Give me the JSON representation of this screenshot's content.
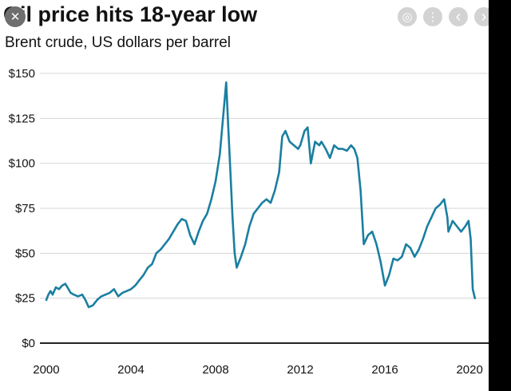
{
  "chart_data": {
    "type": "line",
    "title": "Oil price hits 18-year low",
    "subtitle": "Brent crude, US dollars per barrel",
    "xlabel": "",
    "ylabel": "",
    "x_ticks": [
      "2000",
      "2004",
      "2008",
      "2012",
      "2016",
      "2020"
    ],
    "x_tick_values": [
      2000,
      2004,
      2008,
      2012,
      2016,
      2020
    ],
    "y_ticks": [
      "$0",
      "$25",
      "$50",
      "$75",
      "$100",
      "$125",
      "$150"
    ],
    "y_tick_values": [
      0,
      25,
      50,
      75,
      100,
      125,
      150
    ],
    "xlim": [
      1999.7,
      2020.9
    ],
    "ylim": [
      0,
      150
    ],
    "grid": "horizontal",
    "legend": "none",
    "color": "#1a7fa1",
    "series": [
      {
        "x": [
          2000.0,
          2000.1,
          2000.2,
          2000.3,
          2000.45,
          2000.6,
          2000.75,
          2000.9,
          2001.0,
          2001.15,
          2001.3,
          2001.5,
          2001.7,
          2001.85,
          2002.0,
          2002.2,
          2002.4,
          2002.6,
          2002.8,
          2003.0,
          2003.2,
          2003.4,
          2003.6,
          2003.8,
          2004.0,
          2004.2,
          2004.4,
          2004.6,
          2004.8,
          2005.0,
          2005.2,
          2005.4,
          2005.6,
          2005.8,
          2006.0,
          2006.2,
          2006.4,
          2006.6,
          2006.8,
          2007.0,
          2007.2,
          2007.4,
          2007.6,
          2007.8,
          2008.0,
          2008.2,
          2008.35,
          2008.5,
          2008.6,
          2008.7,
          2008.8,
          2008.9,
          2009.0,
          2009.2,
          2009.4,
          2009.6,
          2009.8,
          2010.0,
          2010.2,
          2010.4,
          2010.6,
          2010.8,
          2011.0,
          2011.15,
          2011.3,
          2011.5,
          2011.7,
          2011.9,
          2012.0,
          2012.2,
          2012.35,
          2012.5,
          2012.7,
          2012.9,
          2013.0,
          2013.2,
          2013.4,
          2013.6,
          2013.8,
          2014.0,
          2014.2,
          2014.4,
          2014.55,
          2014.7,
          2014.85,
          2015.0,
          2015.2,
          2015.4,
          2015.6,
          2015.8,
          2016.0,
          2016.2,
          2016.4,
          2016.6,
          2016.8,
          2017.0,
          2017.2,
          2017.4,
          2017.6,
          2017.8,
          2018.0,
          2018.2,
          2018.4,
          2018.6,
          2018.8,
          2018.95,
          2019.0,
          2019.2,
          2019.4,
          2019.6,
          2019.8,
          2019.95,
          2020.05,
          2020.15,
          2020.25
        ],
        "y": [
          24,
          27,
          29,
          27,
          31,
          30,
          32,
          33,
          31,
          28,
          27,
          26,
          27,
          24,
          20,
          21,
          24,
          26,
          27,
          28,
          30,
          26,
          28,
          29,
          30,
          32,
          35,
          38,
          42,
          44,
          50,
          52,
          55,
          58,
          62,
          66,
          69,
          68,
          60,
          55,
          62,
          68,
          72,
          80,
          90,
          105,
          125,
          145,
          120,
          95,
          70,
          50,
          42,
          48,
          55,
          65,
          72,
          75,
          78,
          80,
          78,
          85,
          95,
          115,
          118,
          112,
          110,
          108,
          110,
          118,
          120,
          100,
          112,
          110,
          112,
          108,
          103,
          110,
          108,
          108,
          107,
          110,
          108,
          103,
          85,
          55,
          60,
          62,
          55,
          45,
          32,
          38,
          47,
          46,
          48,
          55,
          53,
          48,
          52,
          58,
          65,
          70,
          75,
          77,
          80,
          70,
          62,
          68,
          65,
          62,
          65,
          68,
          58,
          30,
          25
        ]
      }
    ]
  },
  "controls": {
    "close_glyph": "✕",
    "lens_glyph": "◎",
    "more_glyph": "⋮",
    "prev_glyph": "‹",
    "next_glyph": "›"
  }
}
